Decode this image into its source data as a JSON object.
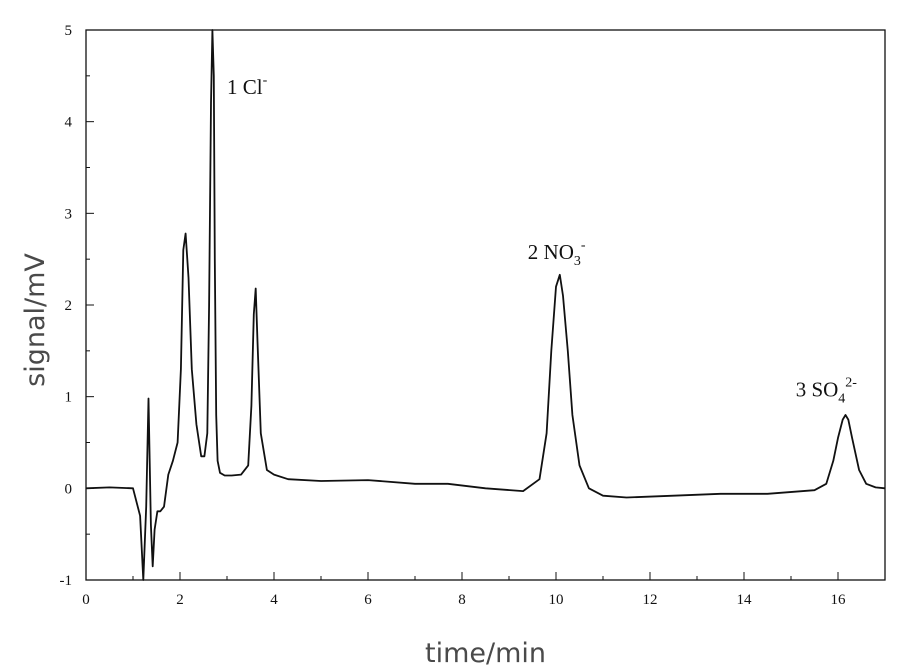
{
  "chart_data": {
    "type": "line",
    "title": "",
    "xlabel": "time/min",
    "ylabel": "signal/mV",
    "xlim": [
      0,
      17
    ],
    "ylim": [
      -1,
      5
    ],
    "xticks": [
      "0",
      "2",
      "4",
      "6",
      "8",
      "10",
      "12",
      "14",
      "16"
    ],
    "yticks": [
      "-1",
      "0",
      "1",
      "2",
      "3",
      "4",
      "5"
    ],
    "grid": false,
    "legend": "none",
    "line_color": "#111111",
    "series": [
      {
        "x": [
          0,
          0.5,
          1.0,
          1.15,
          1.22,
          1.28,
          1.33,
          1.38,
          1.42,
          1.46,
          1.52,
          1.58,
          1.66,
          1.75,
          1.85,
          1.95,
          2.02,
          2.07,
          2.12,
          2.18,
          2.25,
          2.35,
          2.45,
          2.52,
          2.58,
          2.62,
          2.66,
          2.69,
          2.72,
          2.74,
          2.77,
          2.8,
          2.85,
          2.95,
          3.1,
          3.3,
          3.45,
          3.52,
          3.57,
          3.61,
          3.65,
          3.72,
          3.85,
          4.0,
          4.3,
          5.0,
          6.0,
          7.0,
          7.7,
          8.5,
          9.3,
          9.65,
          9.8,
          9.9,
          10.0,
          10.08,
          10.15,
          10.25,
          10.35,
          10.5,
          10.7,
          11.0,
          11.5,
          12.5,
          13.5,
          14.5,
          15.5,
          15.75,
          15.9,
          16.0,
          16.1,
          16.16,
          16.22,
          16.3,
          16.45,
          16.6,
          16.8,
          17.0
        ],
        "values": [
          0.0,
          0.01,
          0.0,
          -0.3,
          -1.0,
          -0.2,
          0.98,
          -0.4,
          -0.85,
          -0.45,
          -0.25,
          -0.25,
          -0.2,
          0.15,
          0.3,
          0.5,
          1.3,
          2.6,
          2.78,
          2.3,
          1.3,
          0.7,
          0.35,
          0.35,
          0.6,
          2.0,
          4.2,
          5.0,
          4.5,
          2.5,
          0.8,
          0.3,
          0.17,
          0.14,
          0.14,
          0.15,
          0.25,
          0.9,
          1.9,
          2.18,
          1.6,
          0.6,
          0.2,
          0.15,
          0.1,
          0.08,
          0.09,
          0.05,
          0.05,
          0.0,
          -0.03,
          0.1,
          0.6,
          1.5,
          2.2,
          2.33,
          2.1,
          1.5,
          0.8,
          0.25,
          0.0,
          -0.08,
          -0.1,
          -0.08,
          -0.06,
          -0.06,
          -0.02,
          0.05,
          0.3,
          0.55,
          0.75,
          0.8,
          0.75,
          0.55,
          0.2,
          0.05,
          0.01,
          0.0
        ]
      }
    ],
    "annotations": [
      {
        "text": "1 Cl",
        "sup": "-",
        "x": 3.0,
        "y": 4.3
      },
      {
        "text": "2 NO",
        "sub": "3",
        "sup": "-",
        "x": 9.4,
        "y": 2.5
      },
      {
        "text": "3 SO",
        "sub": "4",
        "sup": "2-",
        "x": 15.1,
        "y": 1.0
      }
    ]
  }
}
